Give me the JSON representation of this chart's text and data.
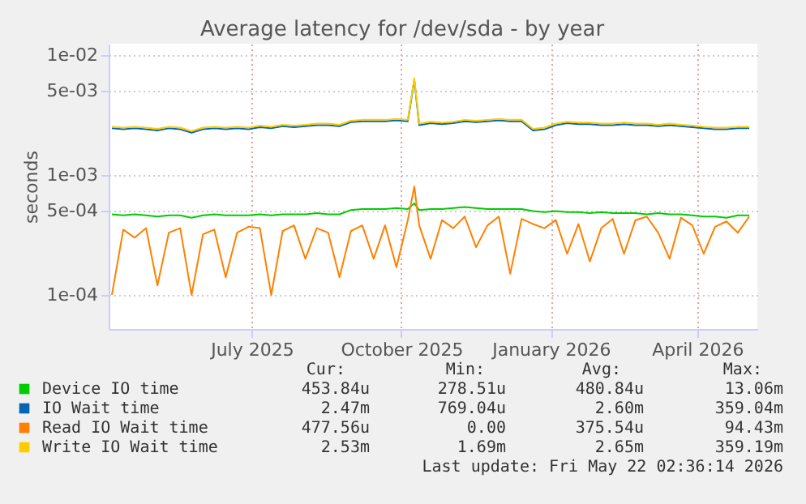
{
  "chart_data": {
    "type": "line",
    "title": "Average latency for /dev/sda - by year",
    "ylabel": "seconds",
    "x": [
      "2025-04-21",
      "2025-04-28",
      "2025-05-05",
      "2025-05-12",
      "2025-05-19",
      "2025-05-26",
      "2025-06-02",
      "2025-06-09",
      "2025-06-16",
      "2025-06-23",
      "2025-06-30",
      "2025-07-07",
      "2025-07-14",
      "2025-07-21",
      "2025-07-28",
      "2025-08-04",
      "2025-08-11",
      "2025-08-18",
      "2025-08-25",
      "2025-09-01",
      "2025-09-08",
      "2025-09-15",
      "2025-09-22",
      "2025-09-29",
      "2025-10-06",
      "2025-10-13",
      "2025-10-20",
      "2025-10-24",
      "2025-10-27",
      "2025-11-03",
      "2025-11-10",
      "2025-11-17",
      "2025-11-24",
      "2025-12-01",
      "2025-12-08",
      "2025-12-15",
      "2025-12-22",
      "2025-12-29",
      "2026-01-05",
      "2026-01-12",
      "2026-01-19",
      "2026-01-26",
      "2026-02-02",
      "2026-02-09",
      "2026-02-16",
      "2026-02-23",
      "2026-03-02",
      "2026-03-09",
      "2026-03-16",
      "2026-03-23",
      "2026-03-30",
      "2026-04-06",
      "2026-04-13",
      "2026-04-20",
      "2026-04-27",
      "2026-05-04",
      "2026-05-11",
      "2026-05-18"
    ],
    "series": [
      {
        "name": "Device IO time",
        "color": "#00cc00",
        "values": [
          0.00047,
          0.00046,
          0.00047,
          0.00046,
          0.00045,
          0.00046,
          0.00046,
          0.00044,
          0.00046,
          0.00047,
          0.00046,
          0.00046,
          0.00046,
          0.00047,
          0.00046,
          0.00047,
          0.00047,
          0.00047,
          0.00048,
          0.00047,
          0.00047,
          0.00051,
          0.00052,
          0.00052,
          0.00052,
          0.00053,
          0.00052,
          0.00058,
          0.00051,
          0.00052,
          0.00052,
          0.00053,
          0.00054,
          0.00053,
          0.00052,
          0.00052,
          0.00052,
          0.00052,
          0.0005,
          0.00049,
          0.0005,
          0.00049,
          0.00049,
          0.00048,
          0.00049,
          0.00048,
          0.00048,
          0.00048,
          0.00047,
          0.00048,
          0.00047,
          0.00047,
          0.00046,
          0.00045,
          0.00045,
          0.00044,
          0.00046,
          0.00046
        ]
      },
      {
        "name": "IO Wait time",
        "color": "#0066b3",
        "values": [
          0.00245,
          0.0024,
          0.00245,
          0.0024,
          0.00235,
          0.00245,
          0.0024,
          0.00225,
          0.0024,
          0.00245,
          0.0024,
          0.00245,
          0.0024,
          0.0025,
          0.00245,
          0.00255,
          0.0025,
          0.00255,
          0.0026,
          0.0026,
          0.00255,
          0.00275,
          0.0028,
          0.0028,
          0.0028,
          0.00285,
          0.0028,
          0.0062,
          0.0026,
          0.0027,
          0.00265,
          0.0027,
          0.0028,
          0.00275,
          0.0028,
          0.00285,
          0.0028,
          0.0028,
          0.00235,
          0.0024,
          0.0026,
          0.0027,
          0.00265,
          0.00265,
          0.0026,
          0.0026,
          0.00265,
          0.0026,
          0.0026,
          0.00255,
          0.0026,
          0.00255,
          0.0025,
          0.00245,
          0.0024,
          0.0024,
          0.00245,
          0.00245
        ]
      },
      {
        "name": "Read IO Wait time",
        "color": "#ff8000",
        "values": [
          0.0001,
          0.00035,
          0.0003,
          0.00036,
          0.00012,
          0.00033,
          0.00036,
          0.0001,
          0.00032,
          0.00035,
          0.00014,
          0.00033,
          0.00037,
          0.00036,
          0.0001,
          0.00034,
          0.00038,
          0.0002,
          0.00036,
          0.00033,
          0.00014,
          0.00034,
          0.00038,
          0.0002,
          0.00038,
          0.00017,
          0.00042,
          0.0008,
          0.00038,
          0.0002,
          0.00042,
          0.00036,
          0.00045,
          0.00025,
          0.00038,
          0.00045,
          0.00015,
          0.00043,
          0.00039,
          0.00036,
          0.00042,
          0.00022,
          0.00039,
          0.00019,
          0.00036,
          0.00043,
          0.00022,
          0.00042,
          0.00045,
          0.00033,
          0.0002,
          0.00044,
          0.00038,
          0.00022,
          0.00037,
          0.00041,
          0.00033,
          0.00045
        ]
      },
      {
        "name": "Write IO Wait time",
        "color": "#ffcc00",
        "values": [
          0.00252,
          0.00248,
          0.00252,
          0.00248,
          0.00242,
          0.00252,
          0.00248,
          0.00232,
          0.00248,
          0.00252,
          0.00248,
          0.00252,
          0.00248,
          0.00258,
          0.00252,
          0.00262,
          0.00258,
          0.00262,
          0.00268,
          0.00268,
          0.00262,
          0.00283,
          0.00288,
          0.00288,
          0.00288,
          0.00293,
          0.00288,
          0.0064,
          0.00268,
          0.00278,
          0.00273,
          0.00278,
          0.00288,
          0.00283,
          0.00288,
          0.00293,
          0.00288,
          0.00288,
          0.00242,
          0.00248,
          0.00268,
          0.00278,
          0.00273,
          0.00273,
          0.00268,
          0.00268,
          0.00273,
          0.00268,
          0.00268,
          0.00262,
          0.00268,
          0.00262,
          0.00258,
          0.00252,
          0.00248,
          0.00248,
          0.00252,
          0.00252
        ]
      }
    ],
    "xlim": [
      "2025-04-19",
      "2026-05-23"
    ],
    "xticks": [
      {
        "value": "2025-07-16",
        "label": "July 2025"
      },
      {
        "value": "2025-10-16",
        "label": "October 2025"
      },
      {
        "value": "2026-01-16",
        "label": "January 2026"
      },
      {
        "value": "2026-04-16",
        "label": "April 2026"
      }
    ],
    "ylim": [
      5.2e-05,
      0.0124
    ],
    "yticks": [
      {
        "value": 0.0001,
        "label": "1e-04"
      },
      {
        "value": 0.0005,
        "label": "5e-04"
      },
      {
        "value": 0.001,
        "label": "1e-03"
      },
      {
        "value": 0.005,
        "label": "5e-03"
      },
      {
        "value": 0.01,
        "label": "1e-02"
      }
    ],
    "log": true,
    "grid": true,
    "legend": "bottom",
    "annotations": [
      "Cur:",
      "Min:",
      "Avg:",
      "Max:",
      "453.84u",
      "278.51u",
      "480.84u",
      "13.06m",
      "2.47m",
      "769.04u",
      "2.60m",
      "359.04m",
      "477.56u",
      "0.00",
      "375.54u",
      "94.43m",
      "2.53m",
      "1.69m",
      "2.65m",
      "359.19m",
      "Last update: Fri May 22 02:36:14 2026"
    ]
  }
}
